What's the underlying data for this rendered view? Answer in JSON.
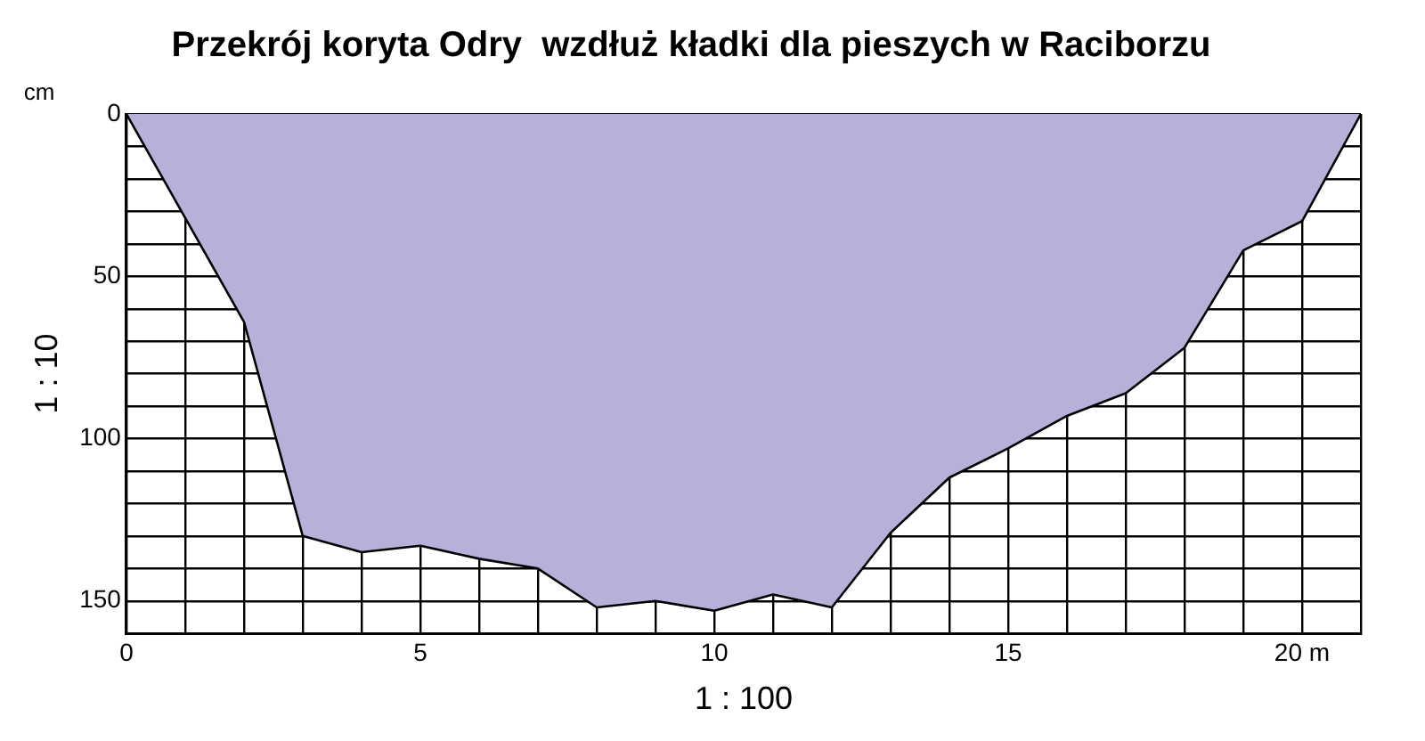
{
  "chart_data": {
    "type": "area",
    "title": "Przekrój koryta Odry  wzdłuż kładki dla pieszych w Raciborzu",
    "xlabel": "1 : 100",
    "ylabel": "1 : 10",
    "annotations": [
      "cm"
    ],
    "x": [
      0,
      1,
      2,
      3,
      4,
      5,
      6,
      7,
      8,
      9,
      10,
      11,
      12,
      13,
      14,
      15,
      16,
      17,
      18,
      19,
      20,
      21
    ],
    "series": [
      {
        "color": "#b8b0d8",
        "values": [
          0,
          32,
          64,
          130,
          135,
          133,
          137,
          140,
          152,
          150,
          153,
          148,
          152,
          129,
          112,
          103,
          93,
          86,
          72,
          42,
          33,
          0
        ]
      }
    ],
    "xlim": [
      0,
      21
    ],
    "xticks": [
      0,
      {
        "value": 1,
        "label": null
      },
      {
        "value": 2,
        "label": null
      },
      {
        "value": 3,
        "label": null
      },
      {
        "value": 4,
        "label": null
      },
      5,
      {
        "value": 6,
        "label": null
      },
      {
        "value": 7,
        "label": null
      },
      {
        "value": 8,
        "label": null
      },
      {
        "value": 9,
        "label": null
      },
      10,
      {
        "value": 11,
        "label": null
      },
      {
        "value": 12,
        "label": null
      },
      {
        "value": 13,
        "label": null
      },
      {
        "value": 14,
        "label": null
      },
      15,
      {
        "value": 16,
        "label": null
      },
      {
        "value": 17,
        "label": null
      },
      {
        "value": 18,
        "label": null
      },
      {
        "value": 19,
        "label": null
      },
      {
        "value": 20,
        "label": "20 m"
      },
      {
        "value": 21,
        "label": null
      }
    ],
    "ylim": [
      160,
      0
    ],
    "yticks": [
      0,
      {
        "value": 10,
        "label": null
      },
      {
        "value": 20,
        "label": null
      },
      {
        "value": 30,
        "label": null
      },
      {
        "value": 40,
        "label": null
      },
      50,
      {
        "value": 60,
        "label": null
      },
      {
        "value": 70,
        "label": null
      },
      {
        "value": 80,
        "label": null
      },
      {
        "value": 90,
        "label": null
      },
      100,
      {
        "value": 110,
        "label": null
      },
      {
        "value": 120,
        "label": null
      },
      {
        "value": 130,
        "label": null
      },
      {
        "value": 140,
        "label": null
      },
      150,
      {
        "value": 160,
        "label": null
      }
    ],
    "grid": true,
    "marker": "none",
    "line_style": "solid",
    "legend": false
  }
}
